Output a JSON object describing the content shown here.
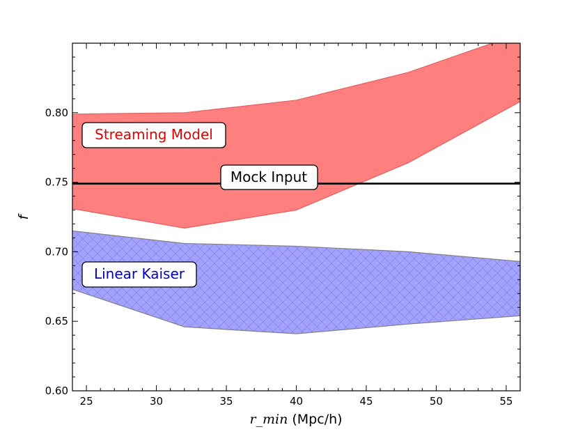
{
  "chart_data": {
    "type": "area",
    "title": "",
    "xlabel": "r_min",
    "xlabel_units": "(Mpc/h)",
    "ylabel": "f",
    "xlim": [
      24,
      56
    ],
    "ylim": [
      0.6,
      0.85
    ],
    "xticks": [
      25,
      30,
      35,
      40,
      45,
      50,
      55
    ],
    "yticks": [
      0.6,
      0.65,
      0.7,
      0.75,
      0.8
    ],
    "xtick_labels": [
      "25",
      "30",
      "35",
      "40",
      "45",
      "50",
      "55"
    ],
    "ytick_labels": [
      "0.60",
      "0.65",
      "0.70",
      "0.75",
      "0.80"
    ],
    "series": [
      {
        "name": "Streaming Model",
        "color": "#ff7f7f",
        "edge_color": "#e06060",
        "x": [
          24,
          32,
          40,
          48,
          56
        ],
        "upper": [
          0.799,
          0.8,
          0.809,
          0.829,
          0.857
        ],
        "lower": [
          0.731,
          0.717,
          0.73,
          0.764,
          0.808
        ]
      },
      {
        "name": "Linear Kaiser",
        "color": "#7f7fff",
        "edge_color": "#808080",
        "hatch": "cross",
        "x": [
          24,
          32,
          40,
          48,
          56
        ],
        "upper": [
          0.715,
          0.706,
          0.704,
          0.7,
          0.693
        ],
        "lower": [
          0.673,
          0.646,
          0.641,
          0.648,
          0.654
        ]
      }
    ],
    "reference_line": {
      "label": "Mock Input",
      "y": 0.749,
      "color": "#000000"
    },
    "annotations": [
      {
        "text": "Streaming Model",
        "color": "#e00000"
      },
      {
        "text": "Linear Kaiser",
        "color": "#0000cc"
      },
      {
        "text": "Mock Input",
        "color": "#000000"
      }
    ]
  }
}
